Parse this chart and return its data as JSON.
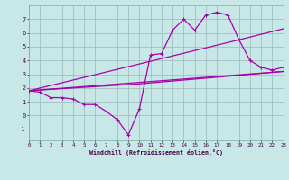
{
  "xlabel": "Windchill (Refroidissement éolien,°C)",
  "xlim": [
    0,
    23
  ],
  "ylim": [
    -1.8,
    8.0
  ],
  "xticks": [
    0,
    1,
    2,
    3,
    4,
    5,
    6,
    7,
    8,
    9,
    10,
    11,
    12,
    13,
    14,
    15,
    16,
    17,
    18,
    19,
    20,
    21,
    22,
    23
  ],
  "yticks": [
    -1,
    0,
    1,
    2,
    3,
    4,
    5,
    6,
    7
  ],
  "bg_color": "#c8e8e8",
  "line_color": "#aa00aa",
  "grid_color": "#9ab8b8",
  "line1_x": [
    0,
    1,
    2,
    3,
    4,
    5,
    6,
    7,
    8,
    9,
    10,
    11,
    12,
    13,
    14,
    15,
    16,
    17,
    18,
    19,
    20,
    21,
    22,
    23
  ],
  "line1_y": [
    1.8,
    1.7,
    1.3,
    1.3,
    1.2,
    0.8,
    0.8,
    0.3,
    -0.3,
    -1.4,
    0.5,
    4.4,
    4.5,
    6.2,
    7.0,
    6.2,
    7.3,
    7.5,
    7.3,
    5.5,
    4.0,
    3.5,
    3.3,
    3.5
  ],
  "line2_x": [
    0,
    23
  ],
  "line2_y": [
    1.8,
    3.2
  ],
  "line3_x": [
    0,
    19,
    23
  ],
  "line3_y": [
    1.8,
    5.5,
    6.3
  ],
  "line4_x": [
    0,
    10,
    23
  ],
  "line4_y": [
    1.8,
    2.3,
    3.2
  ]
}
